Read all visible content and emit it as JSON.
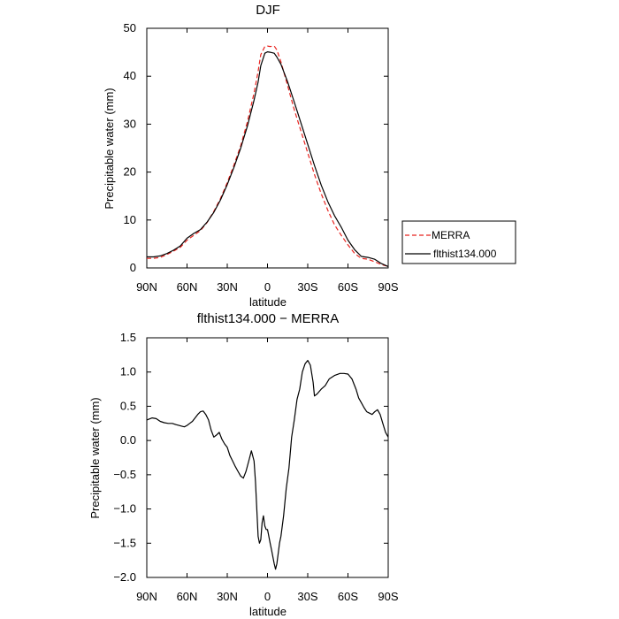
{
  "colors": {
    "merra": "#e8231e",
    "model": "#000000",
    "axes": "#000000"
  },
  "chart_data": [
    {
      "type": "line",
      "title": "DJF",
      "xlabel": "latitude",
      "ylabel": "Precipitable water (mm)",
      "xlim": [
        90,
        -90
      ],
      "ylim": [
        0,
        50
      ],
      "xticks": [
        90,
        60,
        30,
        0,
        -30,
        -60,
        -90
      ],
      "xticklabels": [
        "90N",
        "60N",
        "30N",
        "0",
        "30S",
        "60S",
        "90S"
      ],
      "yticks": [
        0,
        10,
        20,
        30,
        40,
        50
      ],
      "yticklabels": [
        "0",
        "10",
        "20",
        "30",
        "40",
        "50"
      ],
      "legend_position": "outside-right",
      "series": [
        {
          "name": "MERRA",
          "style": "dashed",
          "color": "#e8231e",
          "x": [
            90,
            85,
            80,
            75,
            70,
            65,
            60,
            55,
            50,
            45,
            40,
            35,
            30,
            25,
            20,
            15,
            10,
            7,
            5,
            2,
            0,
            -2,
            -5,
            -7,
            -10,
            -15,
            -20,
            -25,
            -30,
            -35,
            -40,
            -45,
            -50,
            -55,
            -60,
            -65,
            -70,
            -75,
            -80,
            -85,
            -90
          ],
          "y": [
            2.0,
            2.0,
            2.2,
            2.8,
            3.5,
            4.3,
            5.8,
            6.8,
            7.8,
            9.5,
            11.8,
            14.5,
            17.8,
            21.5,
            25.5,
            30.5,
            36.5,
            41.0,
            44.5,
            46.2,
            46.3,
            46.2,
            46.3,
            45.5,
            43.0,
            38.0,
            33.0,
            28.5,
            24.0,
            19.5,
            15.5,
            12.0,
            9.0,
            6.8,
            4.8,
            3.0,
            2.0,
            1.8,
            1.3,
            0.7,
            0.3
          ]
        },
        {
          "name": "flthist134.000",
          "style": "solid",
          "color": "#000000",
          "x": [
            90,
            85,
            80,
            75,
            70,
            65,
            60,
            55,
            50,
            45,
            40,
            35,
            30,
            25,
            20,
            15,
            10,
            7,
            5,
            2,
            0,
            -2,
            -5,
            -7,
            -10,
            -15,
            -20,
            -25,
            -30,
            -35,
            -40,
            -45,
            -50,
            -55,
            -60,
            -65,
            -70,
            -75,
            -80,
            -85,
            -90
          ],
          "y": [
            2.3,
            2.3,
            2.5,
            3.0,
            3.7,
            4.6,
            6.2,
            7.2,
            8.0,
            9.6,
            11.6,
            14.2,
            17.4,
            21.0,
            25.0,
            29.6,
            35.0,
            38.8,
            42.2,
            44.8,
            45.1,
            45.0,
            44.8,
            44.0,
            42.5,
            38.8,
            34.6,
            30.2,
            25.8,
            21.4,
            17.3,
            13.8,
            10.9,
            8.5,
            5.8,
            3.8,
            2.4,
            2.2,
            1.8,
            0.9,
            0.3
          ]
        }
      ]
    },
    {
      "type": "line",
      "title": "flthist134.000 − MERRA",
      "xlabel": "latitude",
      "ylabel": "Precipitable water (mm)",
      "xlim": [
        90,
        -90
      ],
      "ylim": [
        -2.0,
        1.5
      ],
      "xticks": [
        90,
        60,
        30,
        0,
        -30,
        -60,
        -90
      ],
      "xticklabels": [
        "90N",
        "60N",
        "30N",
        "0",
        "30S",
        "60S",
        "90S"
      ],
      "yticks": [
        -2.0,
        -1.5,
        -1.0,
        -0.5,
        0.0,
        0.5,
        1.0,
        1.5
      ],
      "yticklabels": [
        "−2.0",
        "−1.5",
        "−1.0",
        "−0.5",
        "0.0",
        "0.5",
        "1.0",
        "1.5"
      ],
      "series": [
        {
          "style": "solid",
          "color": "#000000",
          "x": [
            90,
            86,
            83,
            80,
            77,
            74,
            71,
            68,
            66,
            64,
            62,
            60,
            58,
            56,
            54,
            52,
            50,
            48,
            46,
            44,
            42,
            40,
            38,
            36,
            34,
            32,
            30,
            28,
            26,
            24,
            22,
            20,
            18,
            16,
            14,
            12,
            10,
            9,
            8,
            7,
            6,
            5,
            4,
            3,
            2,
            1,
            0,
            -1,
            -2,
            -3,
            -4,
            -5,
            -6,
            -7,
            -8,
            -9,
            -10,
            -12,
            -14,
            -16,
            -18,
            -20,
            -22,
            -24,
            -26,
            -28,
            -30,
            -32,
            -34,
            -35,
            -37,
            -40,
            -43,
            -46,
            -50,
            -54,
            -57,
            -60,
            -63,
            -66,
            -68,
            -70,
            -72,
            -74,
            -76,
            -78,
            -80,
            -82,
            -84,
            -86,
            -88,
            -90
          ],
          "y": [
            0.3,
            0.33,
            0.32,
            0.28,
            0.26,
            0.25,
            0.25,
            0.23,
            0.22,
            0.21,
            0.2,
            0.22,
            0.25,
            0.28,
            0.33,
            0.38,
            0.42,
            0.43,
            0.38,
            0.3,
            0.15,
            0.05,
            0.08,
            0.12,
            0.02,
            -0.05,
            -0.1,
            -0.22,
            -0.3,
            -0.38,
            -0.45,
            -0.52,
            -0.55,
            -0.45,
            -0.3,
            -0.15,
            -0.3,
            -0.6,
            -1.0,
            -1.4,
            -1.5,
            -1.45,
            -1.2,
            -1.1,
            -1.25,
            -1.3,
            -1.3,
            -1.4,
            -1.5,
            -1.6,
            -1.7,
            -1.8,
            -1.88,
            -1.8,
            -1.65,
            -1.5,
            -1.4,
            -1.1,
            -0.7,
            -0.4,
            0.05,
            0.3,
            0.6,
            0.75,
            1.0,
            1.12,
            1.17,
            1.1,
            0.85,
            0.65,
            0.68,
            0.75,
            0.8,
            0.9,
            0.95,
            0.98,
            0.98,
            0.97,
            0.9,
            0.75,
            0.62,
            0.55,
            0.48,
            0.42,
            0.4,
            0.38,
            0.42,
            0.45,
            0.38,
            0.25,
            0.12,
            0.05
          ]
        }
      ]
    }
  ],
  "legend": {
    "entries": [
      {
        "label": "MERRA",
        "style": "dashed",
        "color": "#e8231e"
      },
      {
        "label": "flthist134.000",
        "style": "solid",
        "color": "#000000"
      }
    ]
  }
}
